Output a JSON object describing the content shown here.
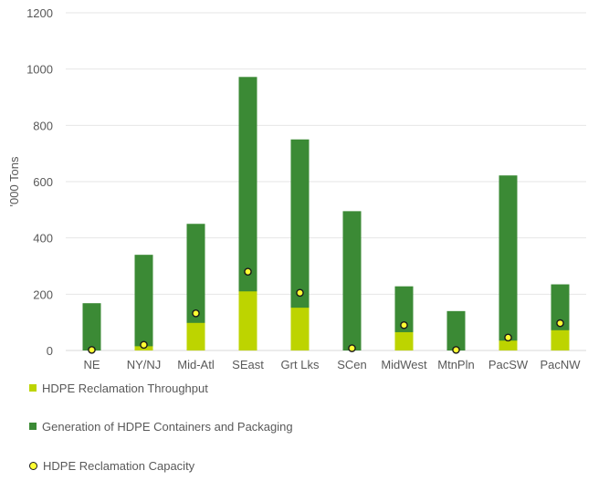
{
  "chart_data": {
    "type": "bar",
    "ylabel": "'000 Tons",
    "xlabel": "",
    "ylim": [
      0,
      1200
    ],
    "yticks": [
      0,
      200,
      400,
      600,
      800,
      1000,
      1200
    ],
    "grid": true,
    "legend_position": "bottom-left",
    "categories": [
      "NE",
      "NY/NJ",
      "Mid-Atl",
      "SEast",
      "Grt Lks",
      "SCen",
      "MidWest",
      "MtnPln",
      "PacSW",
      "PacNW"
    ],
    "series": [
      {
        "name": "HDPE Reclamation Throughput",
        "kind": "bar",
        "color": "#bdd400",
        "values": [
          0,
          15,
          98,
          210,
          152,
          0,
          65,
          0,
          35,
          72
        ]
      },
      {
        "name": "Generation of HDPE Containers and Packaging",
        "kind": "bar",
        "color": "#3b8a35",
        "values": [
          168,
          340,
          450,
          972,
          750,
          495,
          228,
          140,
          622,
          235
        ]
      },
      {
        "name": "HDPE Reclamation Capacity",
        "kind": "marker",
        "color": "#ffff33",
        "values": [
          2,
          20,
          132,
          280,
          205,
          8,
          90,
          2,
          46,
          97
        ]
      }
    ]
  }
}
